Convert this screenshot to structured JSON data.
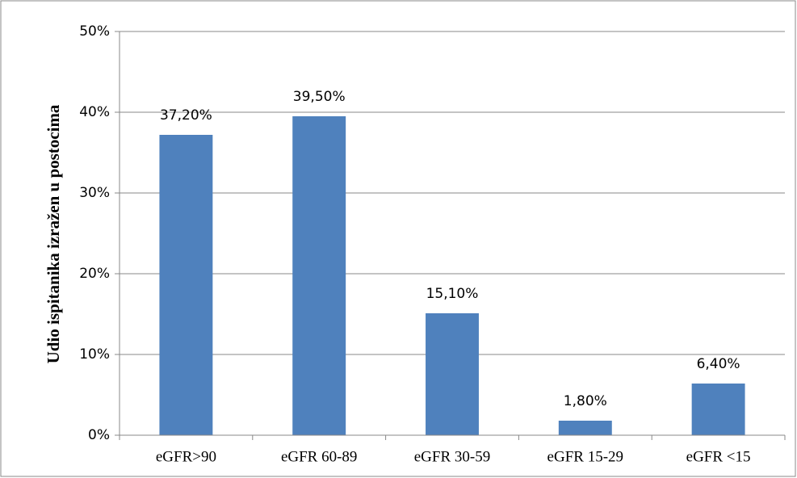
{
  "chart_data": {
    "type": "bar",
    "y_label": "Udio ispitanika izražen u postocima",
    "categories": [
      "eGFR>90",
      "eGFR 60-89",
      "eGFR 30-59",
      "eGFR 15-29",
      "eGFR <15"
    ],
    "values": [
      37.2,
      39.5,
      15.1,
      1.8,
      6.4
    ],
    "value_labels": [
      "37,20%",
      "39,50%",
      "15,10%",
      "1,80%",
      "6,40%"
    ],
    "color": "#4f81bd",
    "ylim": [
      0,
      50
    ],
    "yticks": [
      {
        "value": 0,
        "label": "0%"
      },
      {
        "value": 10,
        "label": "10%"
      },
      {
        "value": 20,
        "label": "20%"
      },
      {
        "value": 30,
        "label": "30%"
      },
      {
        "value": 40,
        "label": "40%"
      },
      {
        "value": 50,
        "label": "50%"
      }
    ],
    "grid": true
  }
}
